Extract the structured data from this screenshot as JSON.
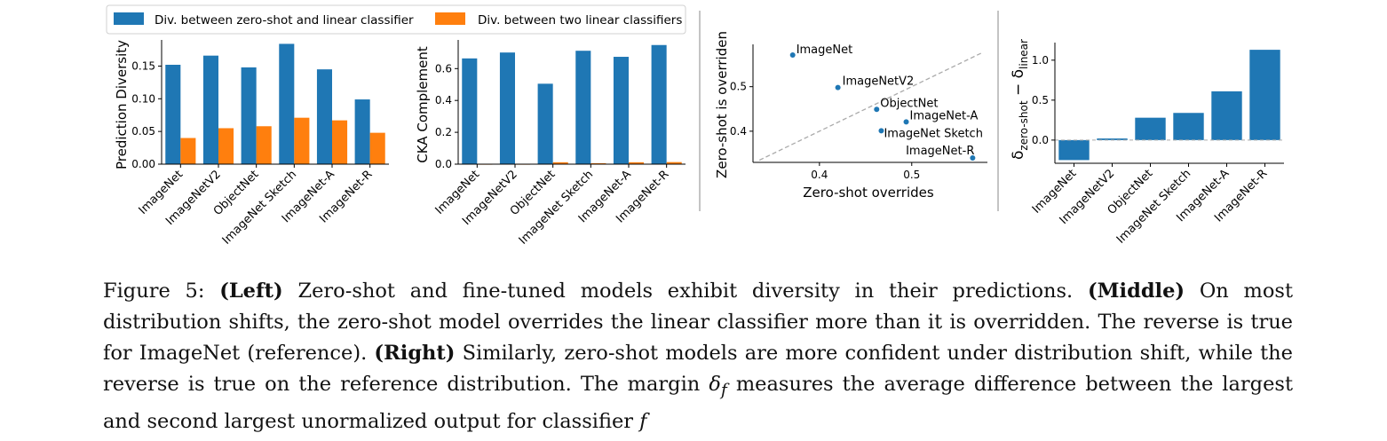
{
  "legend": {
    "zero_linear": "Div. between zero-shot and linear classifier",
    "two_linear": "Div. between two linear classifiers"
  },
  "colors": {
    "blue": "#1f77b4",
    "orange": "#ff7f0e",
    "diag": "#aaaaaa"
  },
  "chart_data": [
    {
      "type": "bar",
      "categories": [
        "ImageNet",
        "ImageNetV2",
        "ObjectNet",
        "ImageNet Sketch",
        "ImageNet-A",
        "ImageNet-R"
      ],
      "series": [
        {
          "name": "Div. between zero-shot and linear classifier",
          "values": [
            0.152,
            0.166,
            0.148,
            0.184,
            0.145,
            0.099
          ]
        },
        {
          "name": "Div. between two linear classifiers",
          "values": [
            0.04,
            0.055,
            0.058,
            0.071,
            0.067,
            0.048
          ]
        }
      ],
      "ylabel": "Prediction Diversity",
      "ylim": [
        0,
        0.19
      ],
      "yticks": [
        "0.00",
        "0.05",
        "0.10",
        "0.15"
      ]
    },
    {
      "type": "bar",
      "categories": [
        "ImageNet",
        "ImageNetV2",
        "ObjectNet",
        "ImageNet Sketch",
        "ImageNet-A",
        "ImageNet-R"
      ],
      "series": [
        {
          "name": "Div. between zero-shot and linear classifier",
          "values": [
            0.664,
            0.701,
            0.505,
            0.712,
            0.674,
            0.748
          ]
        },
        {
          "name": "Div. between two linear classifiers",
          "values": [
            0.0,
            0.0,
            0.012,
            0.006,
            0.012,
            0.013
          ]
        }
      ],
      "ylabel": "CKA Complement",
      "ylim": [
        0,
        0.78
      ],
      "yticks": [
        "0.0",
        "0.2",
        "0.4",
        "0.6"
      ]
    },
    {
      "type": "scatter",
      "points": [
        {
          "label": "ImageNet",
          "x": 0.371,
          "y": 0.571
        },
        {
          "label": "ImageNetV2",
          "x": 0.42,
          "y": 0.498
        },
        {
          "label": "ObjectNet",
          "x": 0.462,
          "y": 0.449
        },
        {
          "label": "ImageNet-A",
          "x": 0.494,
          "y": 0.421
        },
        {
          "label": "ImageNet Sketch",
          "x": 0.467,
          "y": 0.401
        },
        {
          "label": "ImageNet-R",
          "x": 0.566,
          "y": 0.34
        }
      ],
      "xlabel": "Zero-shot overrides",
      "ylabel": "Zero-shot is overriden",
      "xlim": [
        0.328,
        0.582
      ],
      "ylim": [
        0.33,
        0.595
      ],
      "xticks": [
        "0.4",
        "0.5"
      ],
      "yticks": [
        "0.4",
        "0.5"
      ],
      "diagonal": true
    },
    {
      "type": "bar",
      "categories": [
        "ImageNet",
        "ImageNetV2",
        "ObjectNet",
        "ImageNet Sketch",
        "ImageNet-A",
        "ImageNet-R"
      ],
      "values": [
        -0.25,
        0.02,
        0.28,
        0.34,
        0.61,
        1.13
      ],
      "ylabel": "δ zero-shot − δ linear",
      "ylabel_main": "δ",
      "ylabel_sub1": "zero-shot",
      "ylabel_mid": " − δ",
      "ylabel_sub2": "linear",
      "ylim": [
        -0.29,
        1.22
      ],
      "yticks": [
        "0.0",
        "0.5",
        "1.0"
      ],
      "zero_line": true
    }
  ],
  "caption": {
    "fig_label": "Figure 5:",
    "left_label": "(Left)",
    "left_text": " Zero-shot and fine-tuned models exhibit diversity in their predictions. ",
    "middle_label": "(Middle)",
    "middle_text": " On most distribution shifts, the zero-shot model overrides the linear classifier more than it is overridden. The reverse is true for ImageNet (reference). ",
    "right_label": "(Right)",
    "right_text": " Similarly, zero-shot models are more confident under distribution shift, while the reverse is true on the reference distribution. The margin ",
    "delta_symbol": "δ",
    "delta_sub": "f",
    "after_delta": " measures the average difference between the largest and second largest unormalized output for classifier ",
    "final_var": "f"
  }
}
